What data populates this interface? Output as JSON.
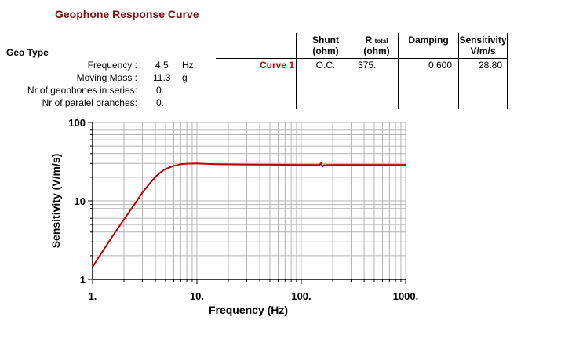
{
  "title": "Geophone Response Curve",
  "geo_type_label": "Geo Type",
  "params": [
    {
      "label": "Frequency :",
      "value": "4.5",
      "unit": "Hz"
    },
    {
      "label": "Moving Mass :",
      "value": "11.3",
      "unit": "g"
    },
    {
      "label": "Nr of geophones in series:",
      "value": "0.",
      "unit": ""
    },
    {
      "label": "Nr of paralel branches:",
      "value": "0.",
      "unit": ""
    }
  ],
  "table": {
    "headers": {
      "shunt": {
        "line1": "Shunt",
        "line2": "(ohm)"
      },
      "rtotal": {
        "line1": "R",
        "line1_small": "total",
        "line2": "(ohm)"
      },
      "damping": {
        "line1": "Damping"
      },
      "sensitivity": {
        "line1": "Sensitivity",
        "line2": "V/m/s"
      }
    },
    "row": {
      "curve": "Curve 1",
      "shunt": "O.C.",
      "rtotal": "375.",
      "damping": "0.600",
      "sensitivity": "28.80"
    }
  },
  "colors": {
    "title": "#7a1010",
    "curve": "#c00000",
    "grid": "#b4b4b4"
  },
  "chart_data": {
    "type": "line",
    "xscale": "log",
    "yscale": "log",
    "xlim": [
      1,
      1000
    ],
    "ylim": [
      1,
      100
    ],
    "xlabel": "Frequency (Hz)",
    "ylabel": "Sensitivity (V/m/s)",
    "x_tick_labels": [
      "1.",
      "10.",
      "100.",
      "1000."
    ],
    "y_tick_labels": [
      "1",
      "10",
      "100"
    ],
    "grid": true,
    "series": [
      {
        "name": "Curve 1",
        "x": [
          1,
          1.2,
          1.5,
          2,
          2.5,
          3,
          3.5,
          4,
          4.5,
          5,
          6,
          7,
          8,
          10,
          12,
          15,
          20,
          30,
          50,
          100,
          150,
          155,
          160,
          165,
          200,
          300,
          500,
          1000
        ],
        "y": [
          1.45,
          2.1,
          3.3,
          5.8,
          8.9,
          12.8,
          16.5,
          20.3,
          23.2,
          25.5,
          28.0,
          29.3,
          29.8,
          30.0,
          29.7,
          29.4,
          29.2,
          29.0,
          28.9,
          28.8,
          28.8,
          30.5,
          27.2,
          28.6,
          28.8,
          28.8,
          28.8,
          28.8
        ]
      }
    ]
  }
}
